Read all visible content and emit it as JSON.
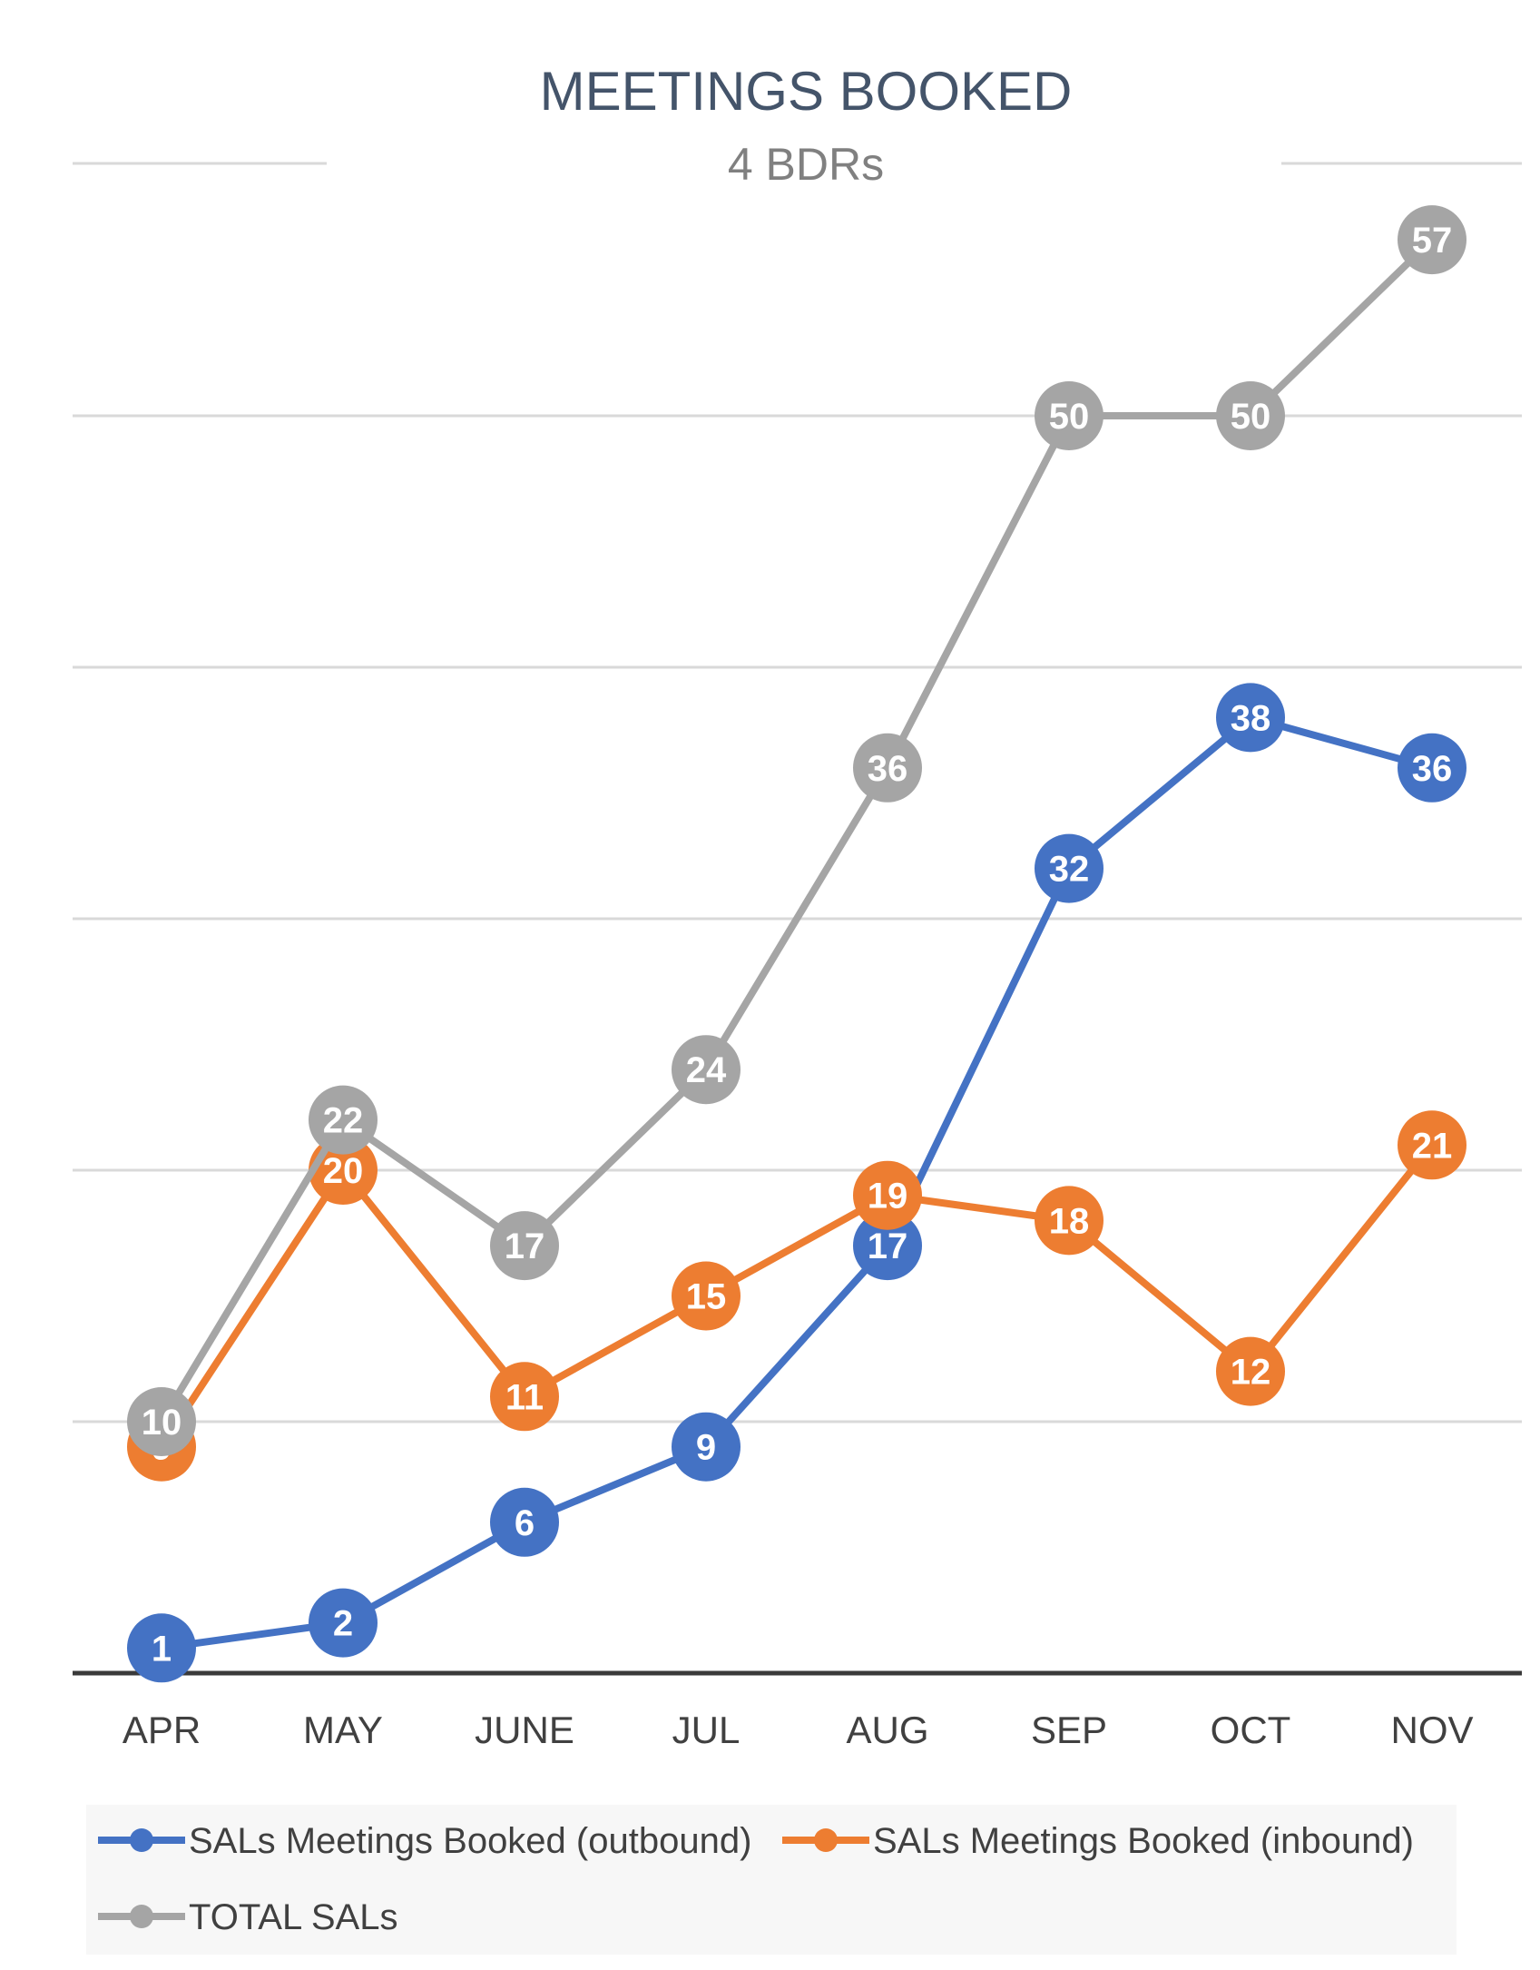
{
  "chart_data": {
    "type": "line",
    "title": "MEETINGS BOOKED",
    "subtitle": "4 BDRs",
    "categories": [
      "APR",
      "MAY",
      "JUNE",
      "JUL",
      "AUG",
      "SEP",
      "OCT",
      "NOV"
    ],
    "ylim": [
      0,
      57
    ],
    "grid": true,
    "legend_position": "bottom",
    "series": [
      {
        "name": "SALs Meetings Booked (outbound)",
        "color": "#4472c4",
        "values": [
          1,
          2,
          6,
          9,
          17,
          32,
          38,
          36
        ]
      },
      {
        "name": "SALs Meetings Booked (inbound)",
        "color": "#ed7d31",
        "values": [
          9,
          20,
          11,
          15,
          19,
          18,
          12,
          21
        ]
      },
      {
        "name": "TOTAL SALs",
        "color": "#a5a5a5",
        "values": [
          10,
          22,
          17,
          24,
          36,
          50,
          50,
          57
        ]
      }
    ]
  },
  "colors": {
    "title": "#44546a",
    "subtitle": "#808080",
    "axis": "#3a3a3a",
    "grid": "#d9d9d9",
    "legend_bg": "#f7f7f7"
  }
}
